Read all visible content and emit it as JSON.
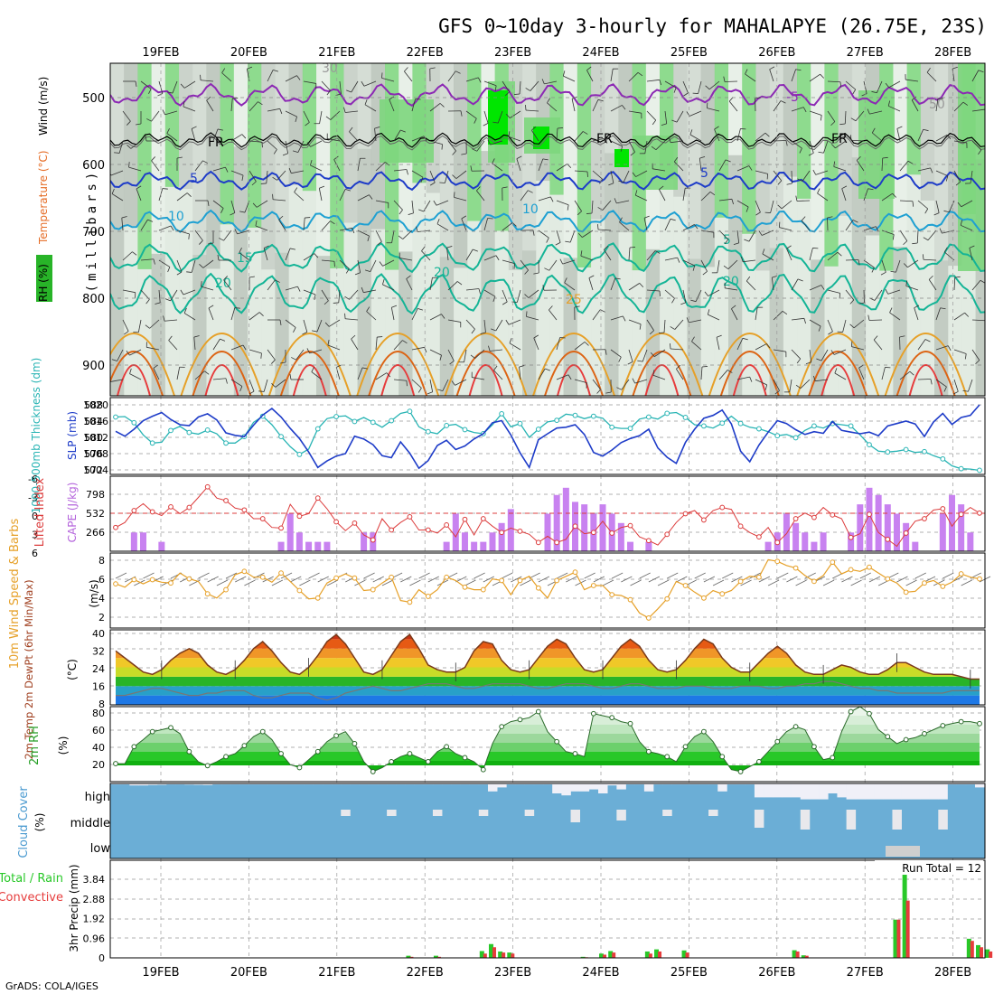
{
  "title": "GFS 0~10day 3-hourly for MAHALAPYE (26.75E, 23S)",
  "footer": "GrADS: COLA/IGES",
  "dates": [
    "19FEB",
    "20FEB",
    "21FEB",
    "22FEB",
    "23FEB",
    "24FEB",
    "25FEB",
    "26FEB",
    "27FEB",
    "28FEB"
  ],
  "colors": {
    "rh_green": "#7dd67d",
    "rh_bright": "#00e600",
    "rh_grey": "#b8c2b8",
    "purple": "#8c28b4",
    "blue": "#1e3cc8",
    "cyan": "#1ea0d2",
    "teal": "#14b496",
    "orange": "#e6a028",
    "dkorange": "#dc6414",
    "red": "#e63c3c",
    "slp": "#1e3cc8",
    "thickness": "#28b4b4",
    "cape": "#c882f0",
    "li": "#dc3c3c",
    "wind": "#e6a028",
    "cloud": "#6baed6",
    "precip_total": "#28c828",
    "precip_conv": "#e63c3c"
  },
  "panels": {
    "upper": {
      "ylabel": "(millibars)",
      "ytick_labels": [
        "500",
        "600",
        "700",
        "800",
        "900"
      ],
      "legend": [
        {
          "text": "RH (%)",
          "color": "#28a028"
        },
        {
          "text": "Temperature (°C)",
          "color": "#e66e28"
        },
        {
          "text": "Wind (m/s)",
          "color": "#000000"
        }
      ],
      "contour_labels": [
        "-5",
        "FR",
        "5",
        "10",
        "15",
        "20",
        "25",
        "50",
        "30"
      ]
    },
    "thickness": {
      "left_label": "1000-500mb Thickness (dm)",
      "right_label": "SLP (mb)",
      "left_ticks": [
        "588",
        "584",
        "580",
        "576",
        "572"
      ],
      "right_ticks": [
        "1020",
        "1016",
        "1012",
        "1008",
        "1004"
      ]
    },
    "cape": {
      "left_label": "Lifted Index",
      "right_label": "CAPE (J/kg)",
      "left_ticks": [
        "-6",
        "-3",
        "0",
        "3",
        "6"
      ],
      "right_ticks": [
        "798",
        "532",
        "266"
      ]
    },
    "wind": {
      "label": "10m Wind Speed & Barbs",
      "unit": "(m/s)",
      "ticks": [
        "8",
        "6",
        "4",
        "2"
      ]
    },
    "temp": {
      "label": "2m Temp 2m DewPt (6hr Min/Max)",
      "unit": "(°C)",
      "ticks": [
        "40",
        "32",
        "24",
        "16",
        "8"
      ]
    },
    "rh": {
      "label": "2m RH",
      "unit": "(%)",
      "ticks": [
        "80",
        "60",
        "40",
        "20"
      ]
    },
    "cloud": {
      "label": "Cloud Cover",
      "unit": "(%)",
      "levels": [
        "high",
        "middle",
        "low"
      ]
    },
    "precip": {
      "label": "3hr Precip (mm)",
      "legend_total": "Total / Rain",
      "legend_conv": "Convective",
      "ticks": [
        "3.84",
        "2.88",
        "1.92",
        "0.96",
        "0"
      ],
      "run_total": "Run Total = 12"
    }
  },
  "chart_data": {
    "type": "line",
    "x_unit": "3-hour steps from 18FEB 12Z",
    "slp_mb": [
      1013.5,
      1012.3,
      1014.0,
      1016.1,
      1017.2,
      1018.1,
      1016.4,
      1015.1,
      1014.9,
      1017.0,
      1017.8,
      1016.3,
      1013.1,
      1012.5,
      1012.2,
      1015.0,
      1017.5,
      1019.1,
      1017.0,
      1014.2,
      1011.7,
      1008.4,
      1004.6,
      1006.2,
      1007.4,
      1008.0,
      1012.3,
      1011.6,
      1010.2,
      1007.5,
      1007.0,
      1010.9,
      1008.1,
      1004.4,
      1006.3,
      1010.0,
      1011.3,
      1009.0,
      1009.9,
      1011.6,
      1012.9,
      1015.6,
      1016.1,
      1012.6,
      1008.2,
      1004.6,
      1011.4,
      1012.9,
      1014.3,
      1014.5,
      1015.1,
      1012.7,
      1008.3,
      1007.4,
      1008.9,
      1010.7,
      1011.7,
      1012.4,
      1014.0,
      1009.4,
      1007.1,
      1005.6,
      1010.8,
      1014.0,
      1016.7,
      1017.4,
      1018.7,
      1015.3,
      1008.6,
      1006.0,
      1010.1,
      1013.3,
      1016.1,
      1015.4,
      1013.9,
      1012.7,
      1013.4,
      1013.0,
      1015.9,
      1013.7,
      1013.3,
      1012.9,
      1013.3,
      1012.4,
      1014.8,
      1015.4,
      1016.0,
      1015.3,
      1012.2,
      1015.8,
      1017.9,
      1015.2,
      1016.9,
      1017.4,
      1020.0
    ],
    "thickness_dm": [
      585.0,
      585.1,
      583.6,
      580.6,
      578.6,
      578.8,
      581.7,
      582.7,
      581.2,
      580.8,
      581.8,
      580.9,
      578.6,
      578.6,
      580.2,
      583.7,
      585.2,
      583.1,
      580.2,
      577.7,
      575.8,
      577.1,
      582.1,
      584.6,
      585.1,
      585.3,
      583.9,
      584.9,
      583.7,
      582.5,
      584.1,
      585.9,
      586.4,
      582.6,
      581.4,
      580.9,
      582.9,
      583.2,
      581.9,
      581.2,
      580.9,
      583.1,
      585.8,
      582.6,
      583.4,
      580.0,
      582.0,
      583.8,
      584.2,
      585.7,
      585.4,
      584.6,
      585.2,
      584.7,
      582.5,
      582.2,
      582.2,
      584.5,
      585.0,
      584.5,
      585.9,
      586.1,
      584.9,
      583.1,
      582.8,
      582.3,
      583.5,
      585.2,
      583.4,
      582.5,
      582.1,
      581.4,
      580.4,
      580.7,
      579.9,
      581.7,
      582.8,
      582.3,
      583.4,
      583.1,
      582.8,
      580.6,
      578.2,
      576.6,
      576.4,
      576.6,
      577.0,
      576.3,
      576.5,
      575.5,
      574.7,
      573.0,
      572.3,
      572.2,
      571.9
    ],
    "lifted_index": [
      -2.2,
      -1.4,
      0.5,
      1.6,
      0.3,
      -0.3,
      1.1,
      0.0,
      1.0,
      2.6,
      4.3,
      2.5,
      2.1,
      0.9,
      0.6,
      -0.8,
      -0.8,
      -2.2,
      -2.3,
      1.5,
      -0.4,
      0.0,
      2.5,
      0.8,
      -1.3,
      -2.7,
      -1.5,
      -3.4,
      -4.2,
      -0.8,
      -2.6,
      -1.4,
      -0.5,
      -2.6,
      -2.6,
      -3.1,
      -1.8,
      -3.7,
      -0.9,
      -3.4,
      -0.8,
      -2.0,
      -3.0,
      -2.3,
      -2.8,
      -3.3,
      -4.6,
      -3.6,
      -4.6,
      -4.1,
      -2.0,
      -3.2,
      -3.0,
      -1.2,
      -3.1,
      -2.2,
      -1.9,
      -3.7,
      -4.3,
      -5.0,
      -3.3,
      -1.4,
      0.0,
      0.5,
      -1.0,
      0.5,
      1.0,
      0.7,
      -2.0,
      -3.0,
      -3.7,
      -2.2,
      -4.6,
      -3.2,
      -0.8,
      0.1,
      -0.6,
      1.0,
      -0.2,
      -0.8,
      -3.8,
      -3.2,
      -0.1,
      -3.0,
      -4.1,
      -5.2,
      -3.1,
      -1.2,
      -0.8,
      0.6,
      0.8,
      -2.0,
      -0.1,
      1.0,
      0.1
    ],
    "cape_jkg": [
      0,
      0,
      266,
      266,
      0,
      133,
      0,
      0,
      0,
      0,
      0,
      0,
      0,
      0,
      0,
      0,
      0,
      0,
      133,
      532,
      266,
      133,
      133,
      133,
      0,
      0,
      0,
      266,
      266,
      0,
      0,
      0,
      0,
      0,
      0,
      0,
      133,
      532,
      266,
      133,
      133,
      266,
      400,
      598,
      0,
      0,
      0,
      532,
      798,
      900,
      700,
      665,
      532,
      665,
      532,
      400,
      133,
      0,
      133,
      0,
      0,
      0,
      0,
      0,
      0,
      0,
      0,
      0,
      0,
      0,
      0,
      133,
      266,
      532,
      400,
      266,
      133,
      266,
      0,
      0,
      266,
      665,
      900,
      798,
      665,
      532,
      400,
      133,
      0,
      0,
      532,
      798,
      665,
      266,
      0
    ],
    "wind_ms": [
      5.3,
      4.9,
      5.8,
      5.3,
      5.8,
      5.5,
      5.4,
      6.6,
      5.9,
      5.6,
      4.1,
      3.6,
      4.6,
      6.4,
      6.8,
      6.1,
      6.1,
      5.5,
      6.6,
      5.6,
      4.5,
      3.5,
      3.6,
      5.4,
      6.0,
      6.5,
      6.0,
      4.5,
      4.6,
      5.4,
      6.1,
      3.3,
      3.1,
      4.6,
      3.8,
      4.6,
      6.1,
      5.7,
      4.9,
      4.6,
      4.6,
      5.9,
      5.7,
      4.0,
      5.7,
      6.2,
      4.8,
      3.6,
      5.7,
      6.2,
      6.7,
      4.6,
      5.1,
      5.1,
      4.0,
      3.9,
      3.4,
      1.8,
      1.2,
      2.3,
      3.5,
      5.6,
      5.1,
      4.3,
      3.6,
      4.5,
      4.1,
      4.5,
      5.6,
      6.2,
      6.1,
      8.2,
      8.0,
      7.5,
      7.2,
      6.3,
      5.6,
      6.3,
      7.9,
      6.5,
      7.0,
      6.8,
      7.3,
      6.6,
      5.9,
      5.4,
      4.3,
      4.4,
      5.4,
      5.7,
      5.0,
      5.5,
      6.5,
      6.1,
      5.9
    ],
    "temp_c": [
      31,
      28,
      25,
      22,
      21,
      23,
      27,
      30,
      32,
      30,
      25,
      22,
      21,
      23,
      27,
      32,
      35,
      31,
      26,
      22,
      21,
      24,
      29,
      35,
      38,
      34,
      28,
      22,
      21,
      23,
      29,
      35,
      38,
      32,
      25,
      23,
      22,
      22,
      24,
      31,
      35,
      34,
      27,
      23,
      22,
      23,
      28,
      33,
      36,
      34,
      28,
      23,
      22,
      23,
      28,
      33,
      36,
      33,
      27,
      23,
      22,
      23,
      27,
      32,
      36,
      34,
      28,
      24,
      22,
      22,
      26,
      30,
      33,
      30,
      25,
      22,
      21,
      21,
      23,
      25,
      24,
      22,
      21,
      21,
      23,
      26,
      26,
      24,
      22,
      21,
      21,
      21,
      20,
      19,
      19
    ],
    "dewpt_c": [
      12,
      12,
      13,
      14,
      15,
      15,
      14,
      13,
      12,
      12,
      13,
      13,
      14,
      14,
      14,
      12,
      11,
      11,
      12,
      13,
      13,
      13,
      11,
      10,
      11,
      13,
      14,
      15,
      16,
      15,
      14,
      14,
      15,
      16,
      17,
      17,
      17,
      16,
      15,
      15,
      16,
      17,
      17,
      17,
      17,
      16,
      15,
      15,
      16,
      17,
      17,
      17,
      16,
      15,
      15,
      16,
      17,
      17,
      16,
      15,
      15,
      15,
      16,
      16,
      16,
      15,
      15,
      15,
      16,
      16,
      16,
      15,
      15,
      16,
      16,
      17,
      17,
      18,
      18,
      17,
      16,
      15,
      15,
      14,
      14,
      13,
      13,
      13,
      13,
      13,
      13,
      14,
      14,
      14,
      14
    ],
    "rh2m_pct": [
      28,
      28,
      45,
      52,
      60,
      62,
      64,
      58,
      40,
      30,
      26,
      30,
      35,
      38,
      46,
      55,
      60,
      52,
      38,
      27,
      24,
      32,
      40,
      50,
      56,
      60,
      48,
      30,
      20,
      24,
      30,
      35,
      38,
      34,
      30,
      40,
      45,
      38,
      34,
      30,
      22,
      48,
      65,
      70,
      72,
      74,
      80,
      60,
      50,
      40,
      38,
      35,
      78,
      76,
      74,
      70,
      68,
      50,
      40,
      38,
      35,
      30,
      45,
      55,
      60,
      50,
      35,
      22,
      20,
      25,
      30,
      40,
      50,
      60,
      65,
      62,
      45,
      32,
      34,
      60,
      80,
      85,
      78,
      62,
      55,
      48,
      52,
      54,
      58,
      62,
      66,
      68,
      70,
      70,
      68
    ],
    "precip_total_mm": [
      0,
      0,
      0,
      0,
      0,
      0,
      0,
      0,
      0,
      0,
      0,
      0,
      0,
      0,
      0,
      0,
      0,
      0,
      0,
      0,
      0,
      0,
      0,
      0,
      0,
      0,
      0,
      0,
      0,
      0,
      0,
      0,
      0.1,
      0,
      0,
      0.1,
      0,
      0,
      0,
      0,
      0.32,
      0.65,
      0.3,
      0.25,
      0,
      0,
      0,
      0,
      0,
      0,
      0,
      0.05,
      0,
      0.2,
      0.32,
      0,
      0,
      0,
      0.3,
      0.4,
      0,
      0,
      0.35,
      0,
      0,
      0,
      0,
      0,
      0,
      0,
      0,
      0,
      0,
      0,
      0.36,
      0.12,
      0,
      0,
      0,
      0,
      0,
      0,
      0,
      0,
      0,
      1.8,
      4.3,
      0,
      0,
      0,
      0,
      0,
      0,
      0.9,
      0.6,
      0.4,
      0.2
    ],
    "precip_conv_mm": [
      0,
      0,
      0,
      0,
      0,
      0,
      0,
      0,
      0,
      0,
      0,
      0,
      0,
      0,
      0,
      0,
      0,
      0,
      0,
      0,
      0,
      0,
      0,
      0,
      0,
      0,
      0,
      0,
      0,
      0,
      0,
      0,
      0.05,
      0,
      0,
      0.05,
      0,
      0,
      0,
      0,
      0.2,
      0.5,
      0.25,
      0.2,
      0,
      0,
      0,
      0,
      0,
      0,
      0,
      0.03,
      0,
      0.15,
      0.25,
      0,
      0,
      0,
      0.2,
      0.3,
      0,
      0,
      0.25,
      0,
      0,
      0,
      0,
      0,
      0,
      0,
      0,
      0,
      0,
      0,
      0.3,
      0.1,
      0,
      0,
      0,
      0,
      0,
      0,
      0,
      0,
      0,
      1.8,
      2.7,
      0,
      0,
      0,
      0,
      0,
      0,
      0.8,
      0.5,
      0.3,
      0.15
    ],
    "cloud_high": [
      0.95,
      0.95,
      0.9,
      0.9,
      0.92,
      0.93,
      0.95,
      0.95,
      0.94,
      0.93,
      0.92,
      0.95,
      0.95,
      0.95,
      0.95,
      0.95,
      0.95,
      0.95,
      0.95,
      0.95,
      0.95,
      0.95,
      0.95,
      0.95,
      0.95,
      0.95,
      0.95,
      0.95,
      0.95,
      0.95,
      0.95,
      0.95,
      0.95,
      0.95,
      0.95,
      0.95,
      0.95,
      0.95,
      0.95,
      0.95,
      0.95,
      0.6,
      0.8,
      0.95,
      0.95,
      0.95,
      0.95,
      0.95,
      0.5,
      0.4,
      0.6,
      0.6,
      0.7,
      0.5,
      0.9,
      0.7,
      0.95,
      0.95,
      0.6,
      0.95,
      0.95,
      0.95,
      0.95,
      0.95,
      0.95,
      0.95,
      0.6,
      0.95,
      0.95,
      0.95,
      0.3,
      0.3,
      0.3,
      0.3,
      0.3,
      0.2,
      0.2,
      0.2,
      0.5,
      0.3,
      0.2,
      0.2,
      0.2,
      0.2,
      0.2,
      0.2,
      0.2,
      0.2,
      0.2,
      0.2,
      0.2,
      0.95,
      0.95,
      0.95,
      0.8
    ]
  }
}
